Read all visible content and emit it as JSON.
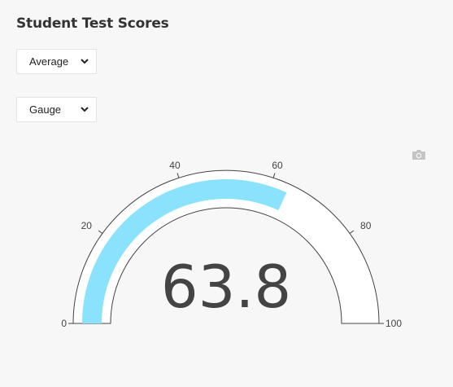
{
  "header": {
    "title": "Student Test Scores"
  },
  "controls": {
    "metric_select": {
      "selected": "Average"
    },
    "chart_select": {
      "selected": "Gauge"
    }
  },
  "toolbar": {
    "export_icon": "camera-icon"
  },
  "chart_data": {
    "type": "gauge",
    "value": 63.8,
    "min": 0,
    "max": 100,
    "ticks": [
      0,
      20,
      40,
      60,
      80,
      100
    ],
    "tick_labels": [
      "0",
      "20",
      "40",
      "60",
      "80",
      "100"
    ],
    "value_label": "63.8",
    "band_color": "#8ae2fc",
    "background_color": "#ffffff"
  }
}
